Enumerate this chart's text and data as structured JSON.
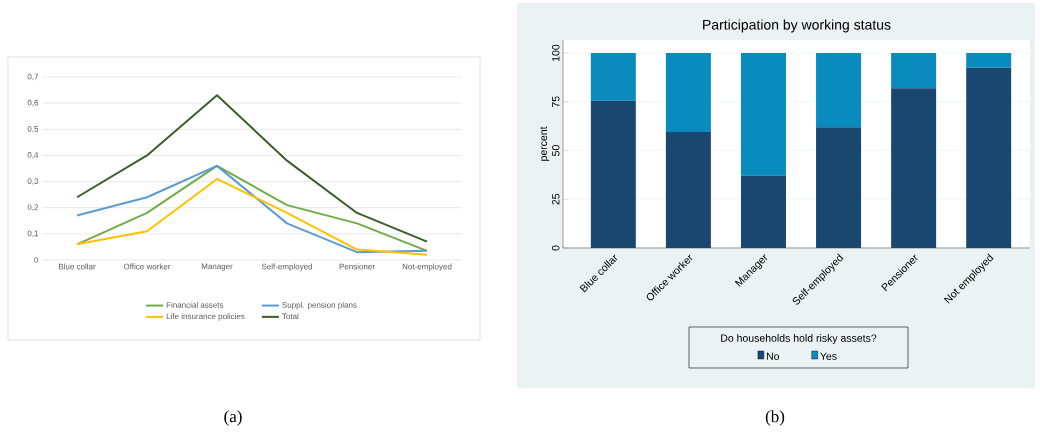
{
  "chart_data": [
    {
      "type": "line",
      "categories": [
        "Blue collar",
        "Office worker",
        "Manager",
        "Self-employed",
        "Pensioner",
        "Not-employed"
      ],
      "series": [
        {
          "name": "Financial assets",
          "color": "#70ad47",
          "values": [
            0.06,
            0.18,
            0.36,
            0.21,
            0.14,
            0.035
          ]
        },
        {
          "name": "Suppl. pension plans",
          "color": "#5b9bd5",
          "values": [
            0.17,
            0.24,
            0.36,
            0.14,
            0.03,
            0.035
          ]
        },
        {
          "name": "Life insurance policies",
          "color": "#ffc000",
          "values": [
            0.06,
            0.11,
            0.31,
            0.18,
            0.04,
            0.02
          ]
        },
        {
          "name": "Total",
          "color": "#3b5e2b",
          "values": [
            0.24,
            0.4,
            0.63,
            0.38,
            0.18,
            0.07
          ]
        }
      ],
      "ylim": [
        0,
        0.7
      ],
      "yticks": [
        0,
        {
          "value": 0.1,
          "label": "0,1"
        },
        {
          "value": 0.2,
          "label": "0,2"
        },
        {
          "value": 0.3,
          "label": "0,3"
        },
        {
          "value": 0.4,
          "label": "0,4"
        },
        {
          "value": 0.5,
          "label": "0,5"
        },
        {
          "value": 0.6,
          "label": "0,6"
        },
        {
          "value": 0.7,
          "label": "0,7"
        }
      ],
      "grid": "y",
      "legend": "bottom",
      "marker": "none",
      "line_style": "solid",
      "annotations": [
        "(a)"
      ]
    },
    {
      "type": "bar",
      "title": "Participation by working status",
      "ylabel": "percent",
      "legend_title": "Do households hold risky assets?",
      "categories": [
        "Blue collar",
        "Office worker",
        "Manager",
        "Self-employed",
        "Pensioner",
        "Not employed"
      ],
      "series": [
        {
          "name": "No",
          "color": "#1a476f",
          "values": [
            75.5,
            59.5,
            37,
            62,
            82,
            92.5
          ]
        },
        {
          "name": "Yes",
          "color": "#0a8bbe",
          "values": [
            24.5,
            40.5,
            63,
            38,
            18,
            7.5
          ]
        }
      ],
      "stacked": true,
      "ylim": [
        0,
        106.7
      ],
      "yticks": [
        0,
        25,
        50,
        75,
        100
      ],
      "grid": "y",
      "legend": "bottom",
      "annotations": [
        "(b)"
      ]
    }
  ]
}
